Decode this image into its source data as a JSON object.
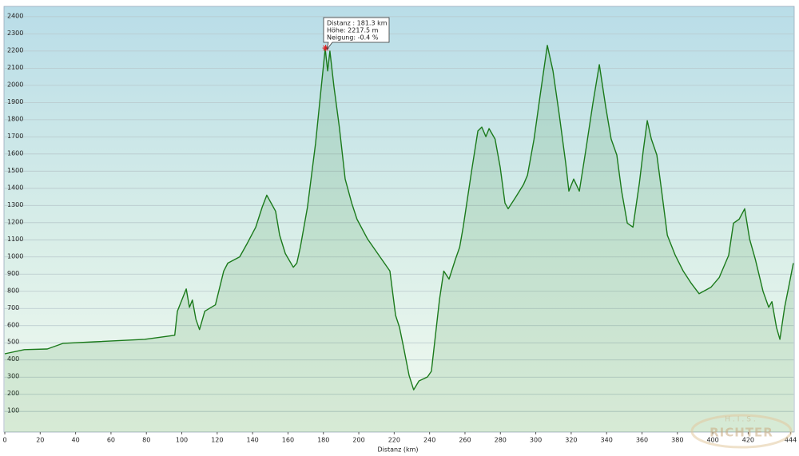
{
  "chart_data": {
    "type": "area",
    "x_label": "Distanz  (km)",
    "x": [
      0,
      11,
      24,
      33,
      51,
      79,
      96,
      97.5,
      102.5,
      104.3,
      106,
      108,
      110,
      113,
      119,
      123.7,
      126,
      132.7,
      137,
      141.8,
      145.4,
      148,
      153,
      155.3,
      158.5,
      163,
      165,
      167,
      171,
      175.6,
      178.8,
      181,
      182.4,
      183.7,
      186,
      189,
      192.3,
      196,
      199,
      205,
      212,
      217.6,
      220.8,
      223,
      225.3,
      228.4,
      231,
      234,
      238.8,
      241,
      245.6,
      248,
      251,
      254.6,
      257,
      259,
      263.7,
      267.3,
      269.5,
      271.8,
      273.6,
      277,
      279.9,
      282.6,
      284.4,
      288.5,
      293,
      295.3,
      299,
      302.5,
      306.5,
      309.7,
      313.3,
      316.9,
      318.7,
      321.4,
      324.6,
      328.2,
      332.3,
      335.9,
      339.5,
      342.6,
      345.8,
      348.5,
      351.7,
      354.9,
      358.5,
      360.7,
      363,
      365.3,
      368.4,
      371.1,
      374.3,
      378.8,
      383.3,
      387.8,
      392.3,
      399,
      403.6,
      409,
      411.7,
      414.9,
      418,
      420.8,
      424,
      428.4,
      431.6,
      433.4,
      436,
      437.9,
      440.6,
      443.3,
      445.5
    ],
    "values": [
      436,
      460,
      464,
      497,
      506,
      520,
      544,
      684,
      814,
      707,
      749,
      637,
      577,
      684,
      721,
      918,
      964,
      1001,
      1080,
      1174,
      1290,
      1360,
      1267,
      1127,
      1020,
      940,
      964,
      1057,
      1290,
      1664,
      1991,
      2214,
      2084,
      2200,
      1991,
      1757,
      1454,
      1314,
      1220,
      1104,
      1001,
      918,
      660,
      590,
      474,
      310,
      226,
      278,
      301,
      334,
      754,
      918,
      871,
      987,
      1057,
      1174,
      1500,
      1734,
      1757,
      1701,
      1748,
      1687,
      1524,
      1314,
      1281,
      1346,
      1421,
      1477,
      1687,
      1944,
      2233,
      2084,
      1827,
      1547,
      1384,
      1454,
      1384,
      1617,
      1897,
      2121,
      1874,
      1687,
      1594,
      1384,
      1197,
      1174,
      1430,
      1617,
      1794,
      1687,
      1594,
      1384,
      1127,
      1010,
      918,
      847,
      786,
      824,
      880,
      1010,
      1197,
      1220,
      1281,
      1104,
      987,
      800,
      707,
      740,
      590,
      520,
      707,
      847,
      964
    ],
    "color": "#1b7a1b",
    "xlim": [
      0,
      446
    ],
    "ylim": [
      -20,
      2460
    ],
    "xticks": [
      0,
      20,
      40,
      60,
      80,
      100,
      120,
      140,
      160,
      180,
      200,
      220,
      240,
      260,
      280,
      300,
      320,
      340,
      360,
      380,
      400,
      420,
      444
    ],
    "yticks": [
      100,
      200,
      300,
      400,
      500,
      600,
      700,
      800,
      900,
      1000,
      1100,
      1200,
      1300,
      1400,
      1500,
      1600,
      1700,
      1800,
      1900,
      2000,
      2100,
      2200,
      2300,
      2400
    ],
    "grid": true,
    "marker": {
      "x": 181.3,
      "y": 2217.5
    },
    "tooltip": [
      "Distanz : 181.3 km",
      "Höhe: 2217.5 m",
      "Neigung: -0.4 %"
    ],
    "watermark": [
      "H.I.S.",
      "RICHTER"
    ]
  }
}
